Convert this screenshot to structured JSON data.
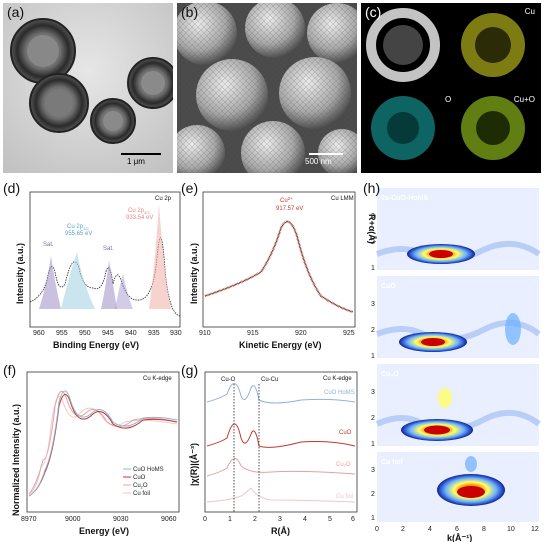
{
  "panels": {
    "a": {
      "label": "(a)",
      "scale": "1 μm"
    },
    "b": {
      "label": "(b)",
      "scale": "500 nm"
    },
    "c": {
      "label": "(c)",
      "maps": [
        "Cu",
        "O",
        "Cu+O"
      ]
    },
    "d": {
      "label": "(d)",
      "tag": "Cu 2p",
      "ylabel": "Intensity (a.u.)",
      "xlabel": "Binding Energy (eV)",
      "xticks": [
        "960",
        "955",
        "950",
        "945",
        "940",
        "935",
        "930"
      ],
      "annotations": {
        "sat1": "Sat.",
        "sat2": "Sat.",
        "p12": "Cu 2p",
        "p12_sub": "1/2",
        "p12_val": "955.65 eV",
        "p32": "Cu 2p",
        "p32_sub": "3/2",
        "p32_val": "933.54 eV"
      }
    },
    "e": {
      "label": "(e)",
      "tag": "Cu LMM",
      "ylabel": "Intensity (a.u.)",
      "xlabel": "Kinetic Energy (eV)",
      "xticks": [
        "910",
        "915",
        "920",
        "925"
      ],
      "peak_label": "Cu",
      "peak_sup": "2+",
      "peak_value": "917.57 eV"
    },
    "f": {
      "label": "(f)",
      "tag": "Cu K-edge",
      "ylabel": "Normalized Intensity (a.u.)",
      "xlabel": "Energy (eV)",
      "xticks": [
        "8970",
        "9000",
        "9030",
        "9060"
      ],
      "legend": [
        "CuO HoMS",
        "CuO",
        "Cu",
        "Cu foil"
      ],
      "legend_sub": "2",
      "legend_suffix": "O"
    },
    "g": {
      "label": "(g)",
      "tag": "Cu K-edge",
      "ylabel": "|χ(R)|(Å⁻³)",
      "xlabel": "R(Å)",
      "xticks": [
        "0",
        "1",
        "2",
        "3",
        "4",
        "5",
        "6"
      ],
      "bond1": "Cu-O",
      "bond2": "Cu-Cu",
      "series": [
        "CuO HoMS",
        "CuO",
        "Cu₂O",
        "Cu foil"
      ]
    },
    "h": {
      "label": "(h)",
      "ylabel": "R+α(Å)",
      "xlabel": "k(Å⁻¹)",
      "xticks": [
        "0",
        "2",
        "4",
        "6",
        "8",
        "10",
        "12"
      ],
      "yticks": [
        "1",
        "2",
        "3"
      ],
      "maps": [
        "3s-CuO-HoMS",
        "CuO",
        "Cu₂O",
        "Cu foil"
      ]
    }
  },
  "colors": {
    "homs": "#8fb4d8",
    "cuo": "#c0392b",
    "cu2o": "#e8a0a0",
    "foil": "#f2c6c6"
  }
}
